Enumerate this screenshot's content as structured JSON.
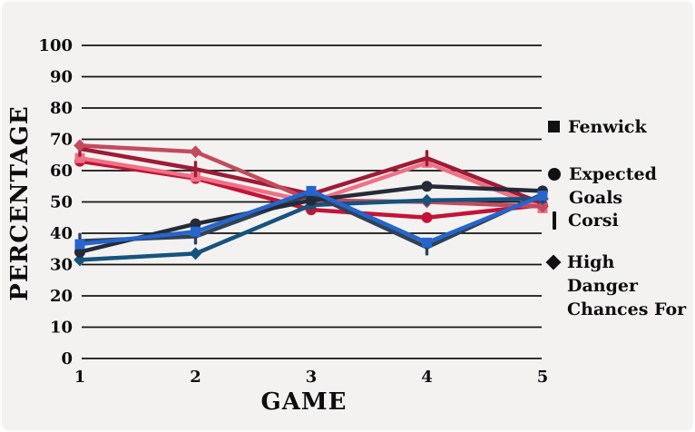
{
  "chart_data": {
    "type": "line",
    "title": "",
    "xlabel": "GAME",
    "ylabel": "PERCENTAGE",
    "x": [
      1,
      2,
      3,
      4,
      5
    ],
    "ylim": [
      0,
      100
    ],
    "yticks": [
      0,
      10,
      20,
      30,
      40,
      50,
      60,
      70,
      80,
      90,
      100
    ],
    "grid": "horizontal-only",
    "legend_position": "right",
    "legend": [
      {
        "label": "Fenwick",
        "marker": "square"
      },
      {
        "label": "Expected Goals",
        "marker": "circle"
      },
      {
        "label": "Corsi",
        "marker": "vbar"
      },
      {
        "label": "High Danger Chances For",
        "marker": "diamond"
      }
    ],
    "series": [
      {
        "name": "expected-goals-red",
        "metric": "Expected Goals",
        "marker": "circle",
        "color": "#c41337",
        "values": [
          63,
          57.5,
          47.5,
          45,
          49
        ]
      },
      {
        "name": "fenwick-red",
        "metric": "Fenwick",
        "marker": "square",
        "color": "#ef7185",
        "values": [
          64,
          58,
          50,
          62.5,
          48
        ]
      },
      {
        "name": "corsi-red",
        "metric": "Corsi",
        "marker": "vbar",
        "color": "#9e1b36",
        "values": [
          67,
          60.5,
          52.5,
          64,
          49.5
        ]
      },
      {
        "name": "high-danger-red",
        "metric": "High Danger Chances For",
        "marker": "diamond",
        "color": "#c34a5e",
        "values": [
          68,
          66,
          50.5,
          50,
          48.5
        ]
      },
      {
        "name": "high-danger-blue",
        "metric": "High Danger Chances For",
        "marker": "diamond",
        "color": "#16537e",
        "values": [
          31.5,
          33.5,
          49,
          50.5,
          51
        ]
      },
      {
        "name": "corsi-blue",
        "metric": "Corsi",
        "marker": "vbar",
        "color": "#2f4257",
        "values": [
          37.5,
          39,
          52.5,
          35.5,
          52.5
        ]
      },
      {
        "name": "expected-goals-blue",
        "metric": "Expected Goals",
        "marker": "circle",
        "color": "#242a38",
        "values": [
          34,
          43,
          50.5,
          55,
          53.5
        ]
      },
      {
        "name": "fenwick-blue",
        "metric": "Fenwick",
        "marker": "square",
        "color": "#2565cd",
        "values": [
          36.5,
          40.5,
          53.5,
          37,
          52
        ]
      }
    ],
    "axis_color": "#141414"
  }
}
